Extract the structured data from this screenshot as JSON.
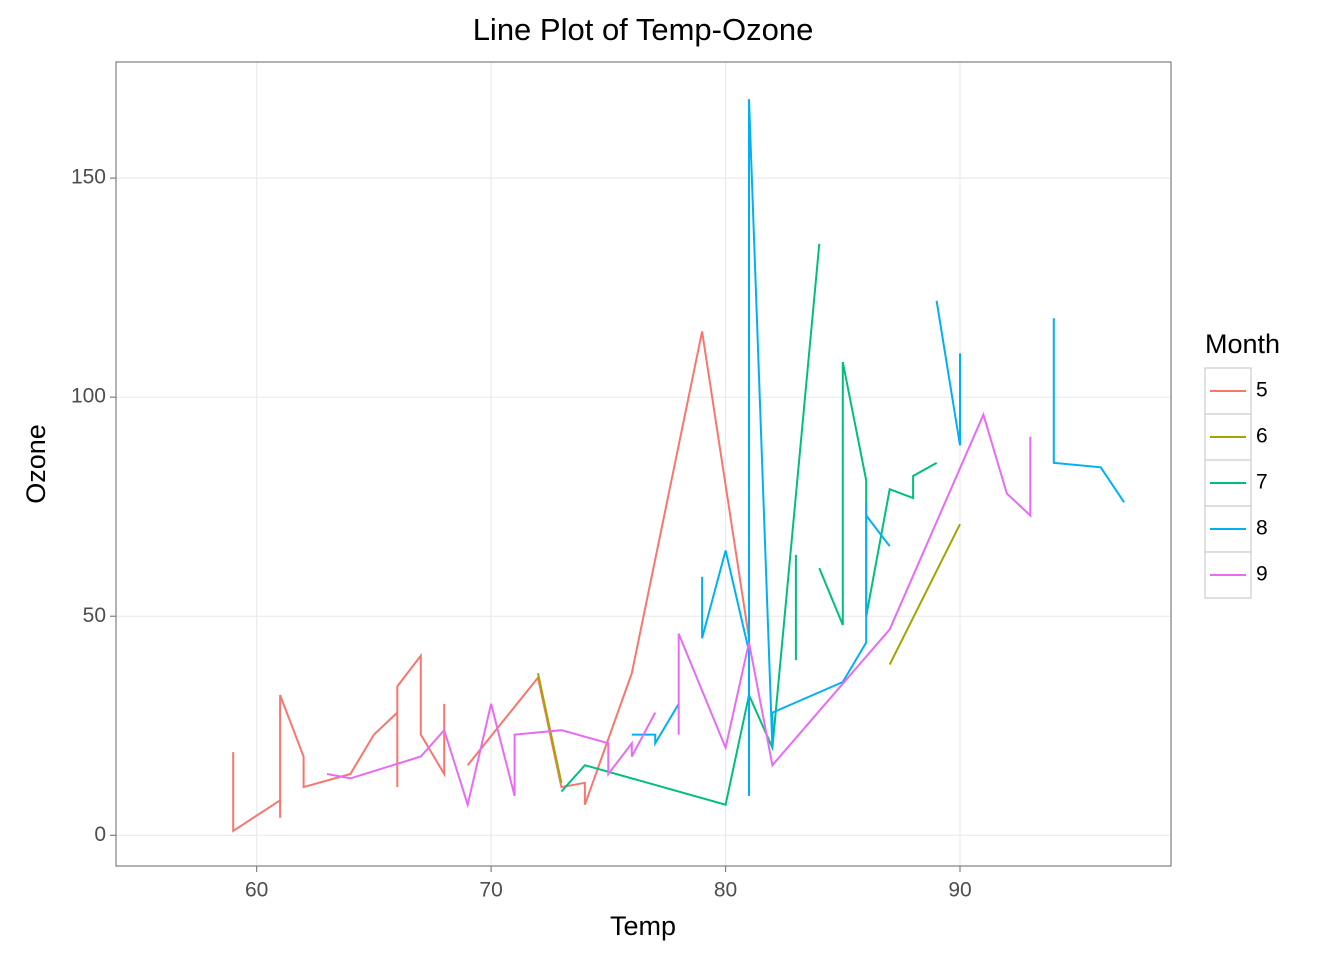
{
  "chart_data": {
    "type": "line",
    "title": "Line Plot of Temp-Ozone",
    "x_label": "Temp",
    "y_label": "Ozone",
    "legend_title": "Month",
    "legend_position": "right",
    "grid": true,
    "xlim": [
      54,
      99
    ],
    "ylim": [
      -7,
      176.5
    ],
    "xticks": [
      60,
      70,
      80,
      90
    ],
    "yticks": [
      0,
      50,
      100,
      150
    ],
    "series": [
      {
        "name": "5",
        "color": "#F8766D",
        "x": [
          59,
          59,
          61,
          61,
          61,
          62,
          62,
          64,
          65,
          66,
          66,
          66,
          67,
          67,
          68,
          68,
          null,
          69,
          72,
          73,
          74,
          74,
          76,
          79,
          81
        ],
        "values": [
          19,
          1,
          8,
          4,
          32,
          18,
          11,
          14,
          23,
          28,
          11,
          34,
          41,
          23,
          14,
          30,
          null,
          16,
          36,
          11,
          12,
          7,
          37,
          115,
          45
        ]
      },
      {
        "name": "6",
        "color": "#A3A500",
        "x": [
          72,
          73,
          null,
          87,
          90
        ],
        "values": [
          37,
          12,
          null,
          39,
          71
        ]
      },
      {
        "name": "7",
        "color": "#00BF7D",
        "x": [
          73,
          74,
          80,
          81,
          82,
          84,
          null,
          83,
          83,
          null,
          84,
          85,
          85,
          86,
          86,
          87,
          88,
          88,
          89
        ],
        "values": [
          10,
          16,
          7,
          32,
          20,
          135,
          null,
          40,
          64,
          null,
          61,
          48,
          108,
          81,
          50,
          79,
          77,
          82,
          85
        ]
      },
      {
        "name": "8",
        "color": "#00B0F6",
        "x": [
          76,
          77,
          77,
          78,
          null,
          79,
          79,
          80,
          81,
          81,
          81,
          82,
          82,
          85,
          86,
          86,
          86,
          87,
          null,
          89,
          90,
          90,
          null,
          94,
          94,
          96,
          97
        ],
        "values": [
          23,
          23,
          21,
          30,
          null,
          59,
          45,
          65,
          42,
          9,
          168,
          20,
          28,
          35,
          44,
          76,
          73,
          66,
          null,
          122,
          89,
          110,
          null,
          118,
          85,
          84,
          76
        ]
      },
      {
        "name": "9",
        "color": "#E76BF3",
        "x": [
          63,
          64,
          67,
          68,
          69,
          70,
          71,
          71,
          73,
          75,
          75,
          76,
          76,
          77,
          null,
          78,
          78,
          80,
          81,
          82,
          87,
          91,
          92,
          93,
          93
        ],
        "values": [
          14,
          13,
          18,
          24,
          7,
          30,
          9,
          23,
          24,
          21,
          14,
          21,
          18,
          28,
          null,
          23,
          46,
          20,
          44,
          16,
          47,
          96,
          78,
          73,
          91
        ]
      }
    ]
  }
}
